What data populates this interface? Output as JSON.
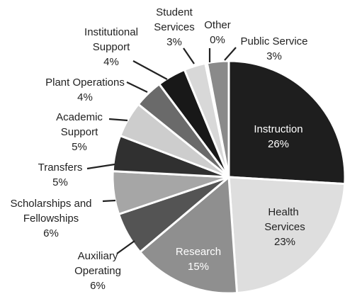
{
  "chart_data": {
    "type": "pie",
    "title": "",
    "slices": [
      {
        "label": "Instruction",
        "value": 26,
        "value_label": "26%",
        "color": "#1e1e1e",
        "label_color": "#ffffff"
      },
      {
        "label": "Health Services",
        "value": 23,
        "value_label": "23%",
        "color": "#dedede",
        "label_color": "#222222"
      },
      {
        "label": "Research",
        "value": 15,
        "value_label": "15%",
        "color": "#8f8f8f",
        "label_color": "#ffffff"
      },
      {
        "label": "Auxiliary Operating",
        "value": 6,
        "value_label": "6%",
        "color": "#545454"
      },
      {
        "label": "Scholarships and Fellowships",
        "value": 6,
        "value_label": "6%",
        "color": "#a6a6a6"
      },
      {
        "label": "Transfers",
        "value": 5,
        "value_label": "5%",
        "color": "#303030"
      },
      {
        "label": "Academic Support",
        "value": 5,
        "value_label": "5%",
        "color": "#cdcdcd"
      },
      {
        "label": "Plant Operations",
        "value": 4,
        "value_label": "4%",
        "color": "#6a6a6a"
      },
      {
        "label": "Institutional Support",
        "value": 4,
        "value_label": "4%",
        "color": "#181818"
      },
      {
        "label": "Student Services",
        "value": 3,
        "value_label": "3%",
        "color": "#d8d8d8"
      },
      {
        "label": "Other",
        "value": 0,
        "value_label": "0%",
        "color": "#ffffff"
      },
      {
        "label": "Public Service",
        "value": 3,
        "value_label": "3%",
        "color": "#8a8a8a"
      }
    ]
  }
}
